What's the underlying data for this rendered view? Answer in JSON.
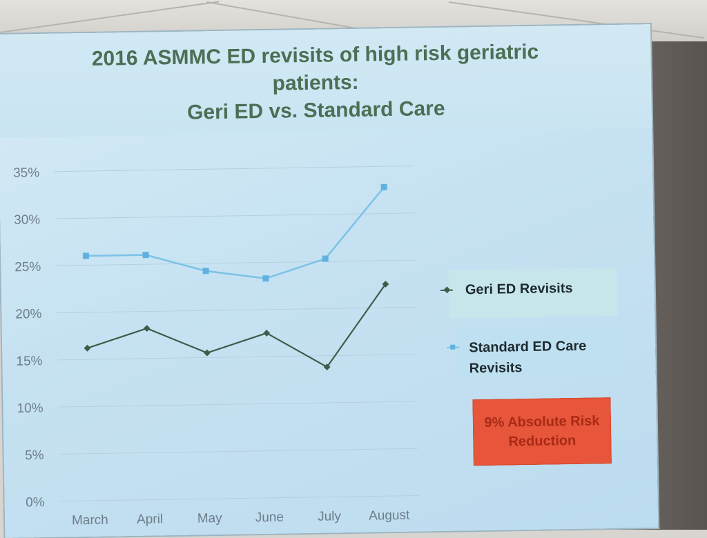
{
  "chart_data": {
    "type": "line",
    "title": "2016 ASMMC ED revisits of high risk geriatric patients: Geri ED vs. Standard Care",
    "title_lines": [
      "2016 ASMMC ED revisits of high risk geriatric",
      "patients:",
      "Geri ED vs. Standard Care"
    ],
    "categories": [
      "March",
      "April",
      "May",
      "June",
      "July",
      "August"
    ],
    "y_ticks": [
      "0%",
      "5%",
      "10%",
      "15%",
      "20%",
      "25%",
      "30%",
      "35%"
    ],
    "ylim": [
      0,
      35
    ],
    "grid": true,
    "legend_position": "right",
    "series": [
      {
        "name": "Geri ED Revisits",
        "values": [
          16.2,
          18.2,
          15.5,
          17.5,
          13.8,
          22.5
        ],
        "color": "#3f5c4a",
        "marker": "diamond"
      },
      {
        "name": "Standard ED Care Revisits",
        "values": [
          26.0,
          26.0,
          24.2,
          23.3,
          25.3,
          32.8
        ],
        "color": "#7ec3e6",
        "marker": "square"
      }
    ],
    "annotation": "9% Absolute Risk Reduction",
    "annotation_lines": [
      "9% Absolute Risk",
      "Reduction"
    ],
    "annotation_color": "#e7563a"
  }
}
